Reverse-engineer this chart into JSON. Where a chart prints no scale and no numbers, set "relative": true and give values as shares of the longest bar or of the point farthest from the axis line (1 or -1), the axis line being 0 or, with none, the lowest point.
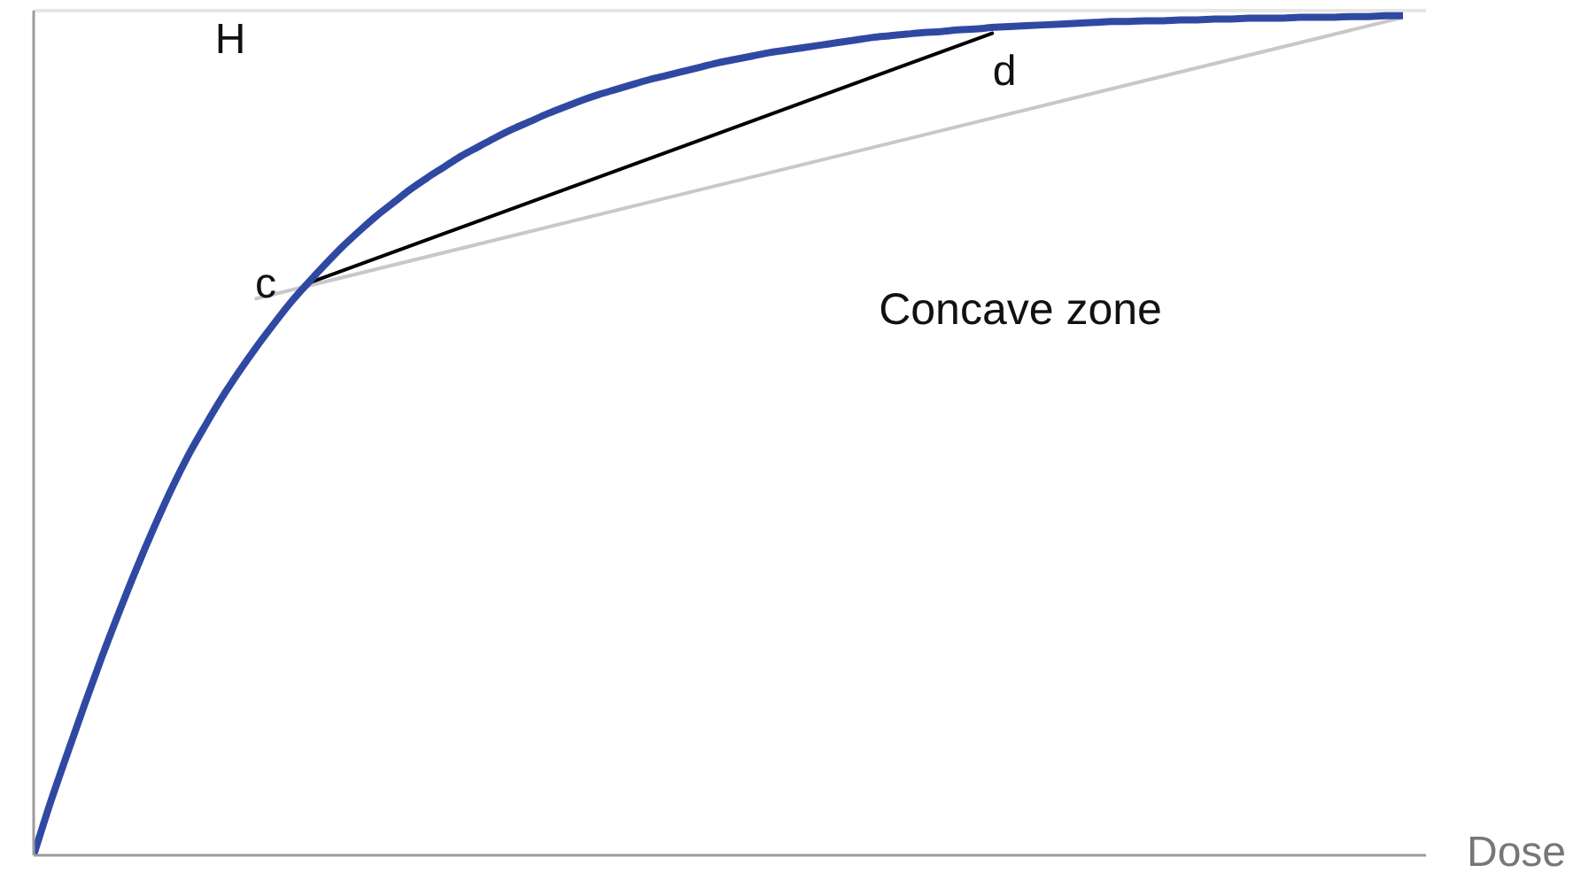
{
  "chart_data": {
    "type": "line",
    "relative": true,
    "xlabel": "Dose",
    "tick_labels": false,
    "categories": [
      null,
      null,
      null,
      null,
      null,
      null,
      null,
      null,
      null,
      null,
      null,
      null,
      null,
      null,
      null,
      null,
      null,
      null,
      null,
      null,
      null,
      null,
      null,
      null,
      null,
      null,
      null,
      null,
      null,
      null,
      null,
      null,
      null,
      null,
      null,
      null,
      null,
      null,
      null,
      null,
      null,
      null,
      null,
      null,
      null,
      null,
      null,
      null,
      null,
      null,
      null,
      null,
      null,
      null,
      null,
      null,
      null,
      null,
      null,
      null,
      null,
      null,
      null,
      null,
      null,
      null,
      null,
      null,
      null,
      null,
      null,
      null,
      null,
      null,
      null,
      null,
      null,
      null,
      null,
      null,
      null
    ],
    "series": [
      {
        "color": "#c8c8c8",
        "values": [
          null,
          null,
          null,
          null,
          null,
          null,
          null,
          null,
          null,
          null,
          null,
          null,
          null,
          0.663,
          null,
          null,
          null,
          null,
          null,
          null,
          null,
          null,
          null,
          null,
          null,
          null,
          null,
          null,
          null,
          null,
          null,
          null,
          null,
          null,
          null,
          null,
          null,
          null,
          null,
          null,
          null,
          null,
          null,
          null,
          null,
          null,
          null,
          null,
          null,
          null,
          null,
          null,
          null,
          null,
          null,
          null,
          null,
          null,
          null,
          null,
          null,
          null,
          null,
          null,
          null,
          null,
          null,
          null,
          null,
          null,
          null,
          null,
          null,
          null,
          null,
          null,
          null,
          null,
          null,
          null,
          0.998
        ]
      },
      {
        "color": "#000000",
        "values": [
          null,
          null,
          null,
          null,
          null,
          null,
          null,
          null,
          null,
          null,
          null,
          null,
          null,
          null,
          null,
          null,
          0.681,
          null,
          null,
          null,
          null,
          null,
          null,
          null,
          null,
          null,
          null,
          null,
          null,
          null,
          null,
          null,
          null,
          null,
          null,
          null,
          null,
          null,
          null,
          null,
          null,
          null,
          null,
          null,
          null,
          null,
          null,
          null,
          null,
          null,
          null,
          null,
          null,
          null,
          null,
          null,
          0.979,
          null,
          null,
          null,
          null,
          null,
          null,
          null,
          null,
          null,
          null,
          null,
          null,
          null,
          null,
          null,
          null,
          null,
          null,
          null,
          null,
          null,
          null,
          null,
          null
        ]
      },
      {
        "color": "#2f49a3",
        "values": [
          0,
          0.064,
          0.123,
          0.181,
          0.237,
          0.29,
          0.341,
          0.389,
          0.434,
          0.475,
          0.511,
          0.545,
          0.576,
          0.605,
          0.632,
          0.658,
          0.681,
          0.703,
          0.724,
          0.743,
          0.761,
          0.777,
          0.793,
          0.807,
          0.82,
          0.833,
          0.844,
          0.855,
          0.865,
          0.874,
          0.883,
          0.891,
          0.899,
          0.906,
          0.912,
          0.918,
          0.924,
          0.929,
          0.934,
          0.939,
          0.944,
          0.948,
          0.952,
          0.956,
          0.959,
          0.962,
          0.965,
          0.968,
          0.971,
          0.974,
          0.976,
          0.978,
          0.98,
          0.981,
          0.983,
          0.984,
          0.986,
          0.987,
          0.988,
          0.989,
          0.99,
          0.991,
          0.992,
          0.993,
          0.993,
          0.994,
          0.994,
          0.995,
          0.995,
          0.996,
          0.996,
          0.997,
          0.997,
          0.997,
          0.998,
          0.998,
          0.998,
          0.999,
          0.999,
          1,
          1
        ]
      }
    ],
    "ref_lines": [
      {
        "axis": "y",
        "value": 1.006,
        "label": "H",
        "color": "#e6e6e6"
      }
    ],
    "annotations": [
      "c",
      {
        "text": "d",
        "y": 0.979
      },
      "Concave zone"
    ]
  }
}
